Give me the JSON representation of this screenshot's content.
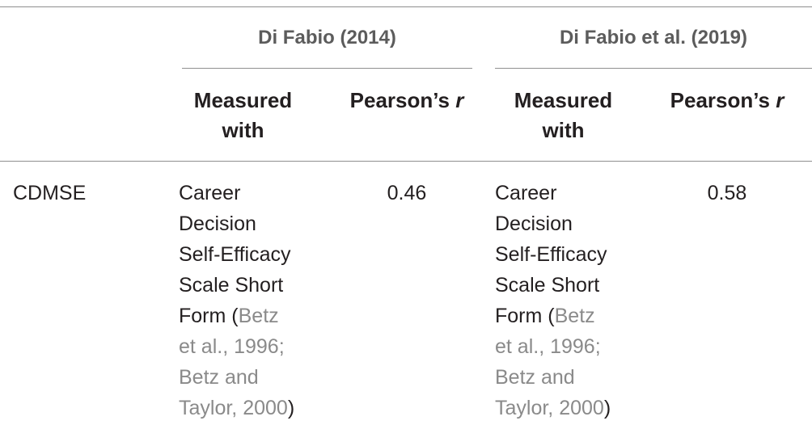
{
  "table": {
    "groups": [
      {
        "label": "Di Fabio (2014)"
      },
      {
        "label": "Di Fabio et al. (2019)"
      }
    ],
    "columns": {
      "measured_with": [
        "Measured",
        "with"
      ],
      "pearson": {
        "text": "Pearson’s ",
        "italic": "r"
      }
    },
    "rows": [
      {
        "label": "CDMSE",
        "cells": [
          {
            "measured_lines": [
              "Career",
              "Decision",
              "Self-Efficacy",
              "Scale Short"
            ],
            "form_prefix": "Form (",
            "ref_1a": "Betz",
            "ref_1b": "et al., 1996;",
            "ref_2a": "Betz and",
            "ref_2b": "Taylor, 2000",
            "close": ")",
            "r": "0.46"
          },
          {
            "measured_lines": [
              "Career",
              "Decision",
              "Self-Efficacy",
              "Scale Short"
            ],
            "form_prefix": "Form (",
            "ref_1a": "Betz",
            "ref_1b": "et al., 1996;",
            "ref_2a": "Betz and",
            "ref_2b": "Taylor, 2000",
            "close": ")",
            "r": "0.58"
          }
        ]
      }
    ]
  }
}
